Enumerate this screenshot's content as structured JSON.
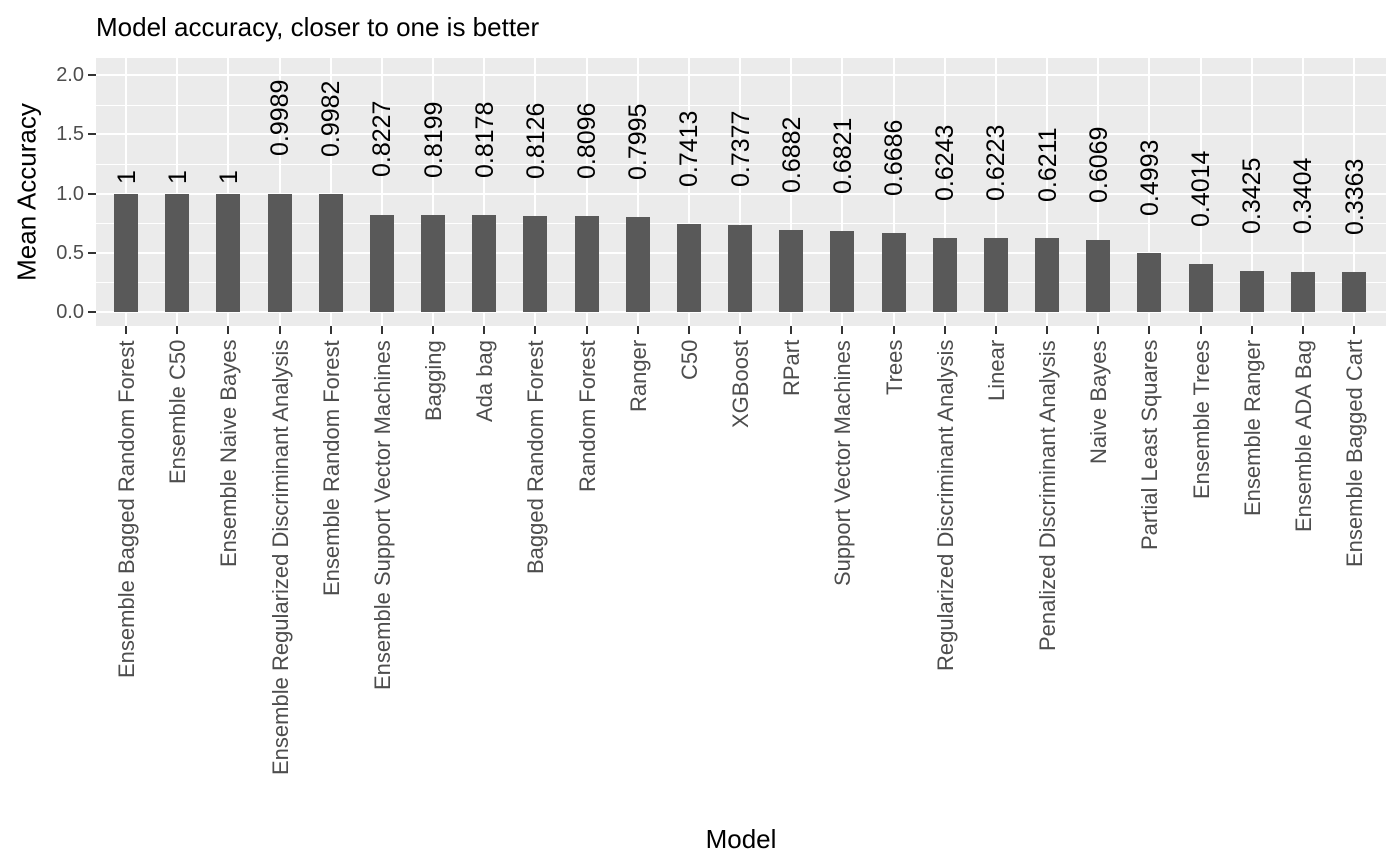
{
  "chart_data": {
    "type": "bar",
    "title": "Model accuracy, closer to one is better",
    "xlabel": "Model",
    "ylabel": "Mean Accuracy",
    "ylim": [
      0,
      2.0
    ],
    "grid": "on",
    "legend": "none",
    "y_ticks": [
      {
        "label": "0.0",
        "value": 0.0
      },
      {
        "label": "0.5",
        "value": 0.5
      },
      {
        "label": "1.0",
        "value": 1.0
      },
      {
        "label": "1.5",
        "value": 1.5
      },
      {
        "label": "2.0",
        "value": 2.0
      }
    ],
    "categories": [
      "Ensemble Bagged Random Forest",
      "Ensemble C50",
      "Ensemble Naive Bayes",
      "Ensemble Regularized Discriminant Analysis",
      "Ensemble Random Forest",
      "Ensemble Support Vector Machines",
      "Bagging",
      "Ada bag",
      "Bagged Random Forest",
      "Random Forest",
      "Ranger",
      "C50",
      "XGBoost",
      "RPart",
      "Support Vector Machines",
      "Trees",
      "Regularized Discriminant Analysis",
      "Linear",
      "Penalized Discriminant Analysis",
      "Naive Bayes",
      "Partial Least Squares",
      "Ensemble Trees",
      "Ensemble Ranger",
      "Ensemble ADA Bag",
      "Ensemble Bagged Cart"
    ],
    "values": [
      1,
      1,
      1,
      0.9989,
      0.9982,
      0.8227,
      0.8199,
      0.8178,
      0.8126,
      0.8096,
      0.7995,
      0.7413,
      0.7377,
      0.6882,
      0.6821,
      0.6686,
      0.6243,
      0.6223,
      0.6211,
      0.6069,
      0.4993,
      0.4014,
      0.3425,
      0.3404,
      0.3363
    ],
    "bar_labels": [
      "1",
      "1",
      "1",
      "0.9989",
      "0.9982",
      "0.8227",
      "0.8199",
      "0.8178",
      "0.8126",
      "0.8096",
      "0.7995",
      "0.7413",
      "0.7377",
      "0.6882",
      "0.6821",
      "0.6686",
      "0.6243",
      "0.6223",
      "0.6211",
      "0.6069",
      "0.4993",
      "0.4014",
      "0.3425",
      "0.3404",
      "0.3363"
    ],
    "style": {
      "bar_color": "#595959",
      "panel_bg": "#EBEBEB",
      "grid_color": "#FFFFFF",
      "axis_text_color": "#4D4D4D",
      "tick_color": "#333333",
      "label_color": "#000000",
      "plot_bg": "#FFFFFF"
    }
  }
}
